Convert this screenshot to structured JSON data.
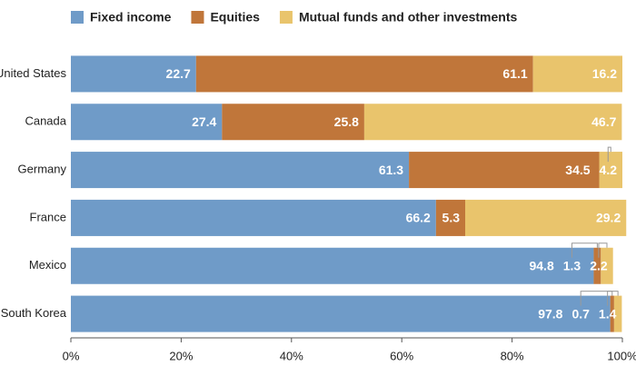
{
  "chart_data": {
    "type": "stacked-bar-horizontal",
    "categories": [
      "United States",
      "Canada",
      "Germany",
      "France",
      "Mexico",
      "South Korea"
    ],
    "series": [
      {
        "name": "Fixed income",
        "color": "#6f9bc8",
        "values": [
          22.7,
          27.4,
          61.3,
          66.2,
          94.8,
          97.8
        ]
      },
      {
        "name": "Equities",
        "color": "#c0763a",
        "values": [
          61.1,
          25.8,
          34.5,
          5.3,
          1.3,
          0.7
        ]
      },
      {
        "name": "Mutual funds and other investments",
        "color": "#e9c46c",
        "values": [
          16.2,
          46.7,
          4.2,
          29.2,
          2.2,
          1.4
        ]
      }
    ],
    "xlim": [
      0,
      100
    ],
    "xticks": [
      {
        "value": 0,
        "label": "0%"
      },
      {
        "value": 20,
        "label": "20%"
      },
      {
        "value": 40,
        "label": "40%"
      },
      {
        "value": 60,
        "label": "60%"
      },
      {
        "value": 80,
        "label": "80%"
      },
      {
        "value": 100,
        "label": "100%"
      }
    ]
  }
}
